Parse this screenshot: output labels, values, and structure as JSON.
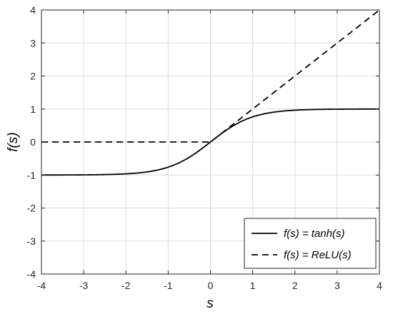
{
  "chart_data": {
    "type": "line",
    "title": "",
    "xlabel": "s",
    "ylabel": "f(s)",
    "xlim": [
      -4,
      4
    ],
    "ylim": [
      -4,
      4
    ],
    "xticks": [
      "-4",
      "-3",
      "-2",
      "-1",
      "0",
      "1",
      "2",
      "3",
      "4"
    ],
    "yticks": [
      "-4",
      "-3",
      "-2",
      "-1",
      "0",
      "1",
      "2",
      "3",
      "4"
    ],
    "grid": true,
    "legend_position": "bottom-right",
    "series": [
      {
        "name": "f(s) = tanh(s)",
        "line_style": "solid",
        "color": "#000000",
        "x": [
          -4,
          -3.5,
          -3,
          -2.5,
          -2,
          -1.75,
          -1.5,
          -1.25,
          -1,
          -0.75,
          -0.5,
          -0.25,
          0,
          0.25,
          0.5,
          0.75,
          1,
          1.25,
          1.5,
          1.75,
          2,
          2.5,
          3,
          3.5,
          4
        ],
        "y": [
          -0.999,
          -0.998,
          -0.995,
          -0.987,
          -0.964,
          -0.941,
          -0.905,
          -0.848,
          -0.762,
          -0.635,
          -0.462,
          -0.245,
          0,
          0.245,
          0.462,
          0.635,
          0.762,
          0.848,
          0.905,
          0.941,
          0.964,
          0.987,
          0.995,
          0.998,
          0.999
        ]
      },
      {
        "name": "f(s) = ReLU(s)",
        "line_style": "dashed",
        "color": "#000000",
        "x": [
          -4,
          0,
          4
        ],
        "y": [
          0,
          0,
          4
        ]
      }
    ]
  }
}
